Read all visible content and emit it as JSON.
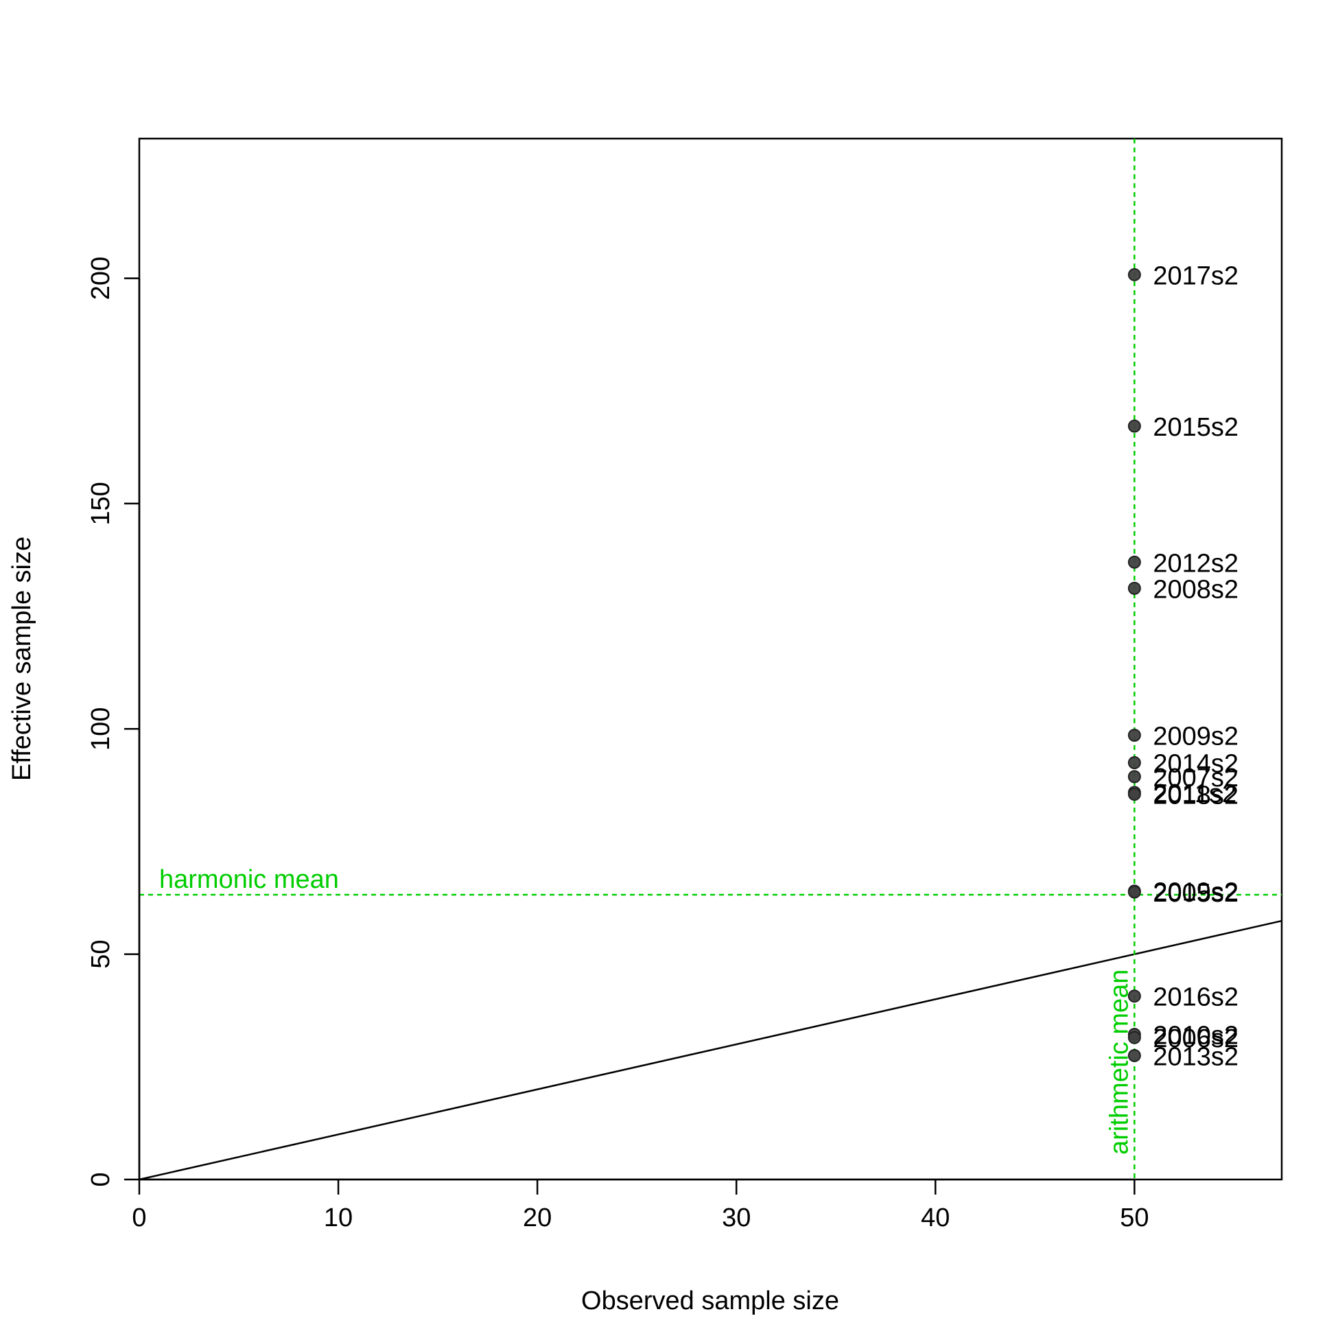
{
  "chart_data": {
    "type": "scatter",
    "title": "",
    "xlabel": "Observed sample size",
    "ylabel": "Effective sample size",
    "xlim": [
      0,
      57.4
    ],
    "ylim": [
      0,
      231
    ],
    "xticks": [
      0,
      10,
      20,
      30,
      40,
      50
    ],
    "yticks": [
      0,
      50,
      100,
      150,
      200
    ],
    "grid": false,
    "points": [
      {
        "x": 50,
        "y": 200.8,
        "label": "2017s2"
      },
      {
        "x": 50,
        "y": 167.2,
        "label": "2015s2"
      },
      {
        "x": 50,
        "y": 137.0,
        "label": "2012s2"
      },
      {
        "x": 50,
        "y": 131.2,
        "label": "2008s2"
      },
      {
        "x": 50,
        "y": 98.6,
        "label": "2009s2"
      },
      {
        "x": 50,
        "y": 92.5,
        "label": "2014s2"
      },
      {
        "x": 50,
        "y": 89.4,
        "label": "2007s2"
      },
      {
        "x": 50,
        "y": 85.9,
        "label": "2011s2"
      },
      {
        "x": 50,
        "y": 85.5,
        "label": "2018s2"
      },
      {
        "x": 50,
        "y": 64.0,
        "label": "2019s2"
      },
      {
        "x": 50,
        "y": 63.8,
        "label": "2005s2"
      },
      {
        "x": 50,
        "y": 40.7,
        "label": "2016s2"
      },
      {
        "x": 50,
        "y": 32.2,
        "label": "2010s2"
      },
      {
        "x": 50,
        "y": 31.5,
        "label": "2006s2"
      },
      {
        "x": 50,
        "y": 27.5,
        "label": "2013s2"
      }
    ],
    "reference_lines": {
      "one_to_one": {
        "slope": 1,
        "intercept": 0,
        "color": "#000000"
      },
      "harmonic_mean": {
        "y": 63.2,
        "label": "harmonic mean",
        "color": "#00CD00"
      },
      "arithmetic_mean": {
        "x": 50,
        "label": "arithmetic mean",
        "color": "#00CD00"
      }
    },
    "point_color": "#404040"
  }
}
